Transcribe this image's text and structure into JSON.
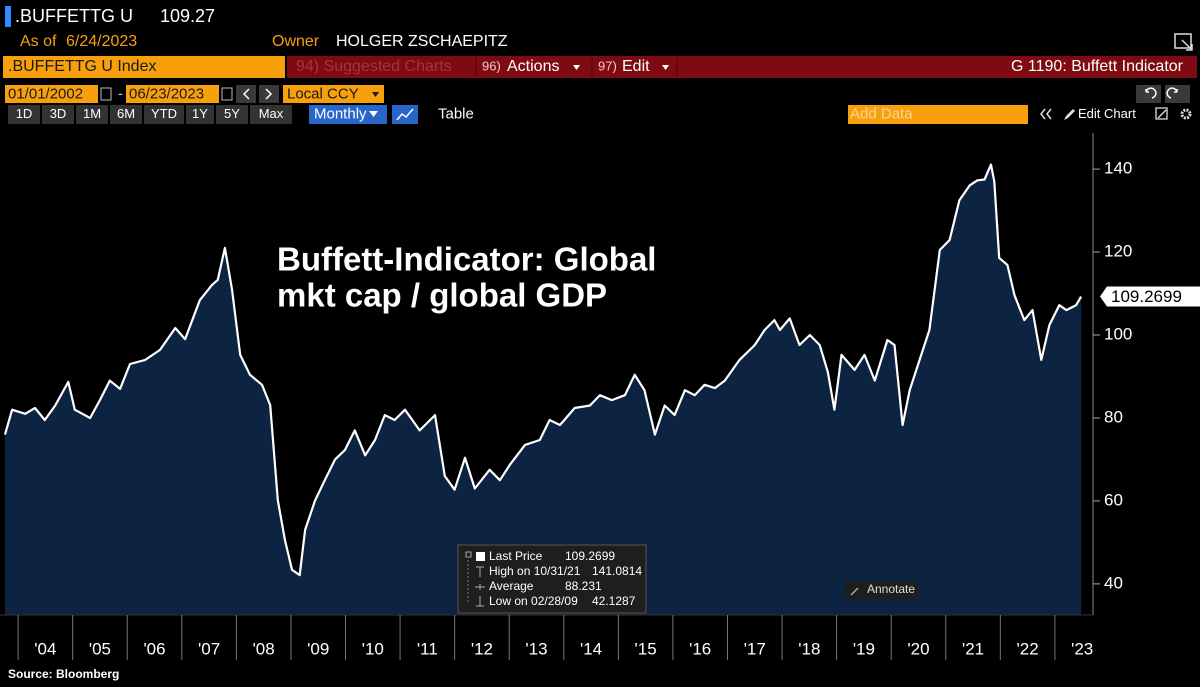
{
  "header": {
    "ticker": ".BUFFETTG U",
    "price": "109.27",
    "as_of_label": "As of",
    "as_of_date": "6/24/2023",
    "owner_label": "Owner",
    "owner": "HOLGER ZSCHAEPITZ"
  },
  "menu": {
    "security": ".BUFFETTG U Index",
    "suggested": "94) Suggested Charts",
    "actions_num": "96)",
    "actions": "Actions",
    "edit_num": "97)",
    "edit": "Edit",
    "chart_id": "G 1190: Buffett Indicator"
  },
  "dates": {
    "start": "01/01/2002",
    "separator": "-",
    "end": "06/23/2023",
    "currency": "Local CCY"
  },
  "toolbar": {
    "ranges": [
      "1D",
      "3D",
      "1M",
      "6M",
      "YTD",
      "1Y",
      "5Y",
      "Max"
    ],
    "frequency": "Monthly",
    "table": "Table",
    "add_data": "Add Data",
    "edit_chart": "Edit Chart",
    "annotate": "Annotate"
  },
  "chart_data": {
    "type": "area",
    "annotation": [
      "Buffett-Indicator: Global",
      "mkt cap / global GDP"
    ],
    "source": "Source: Bloomberg",
    "color": "#ffffff",
    "fill_color": "#0c2342",
    "x": [
      2003.76,
      2003.89,
      2004.13,
      2004.31,
      2004.49,
      2004.68,
      2004.92,
      2005.04,
      2005.32,
      2005.5,
      2005.68,
      2005.87,
      2006.05,
      2006.33,
      2006.6,
      2006.88,
      2007.06,
      2007.33,
      2007.55,
      2007.66,
      2007.79,
      2007.92,
      2008.07,
      2008.25,
      2008.47,
      2008.62,
      2008.76,
      2008.89,
      2009.02,
      2009.16,
      2009.26,
      2009.44,
      2009.62,
      2009.81,
      2009.99,
      2010.17,
      2010.36,
      2010.54,
      2010.72,
      2010.9,
      2011.09,
      2011.36,
      2011.64,
      2011.82,
      2012.0,
      2012.19,
      2012.37,
      2012.64,
      2012.83,
      2013.01,
      2013.29,
      2013.56,
      2013.74,
      2013.93,
      2014.2,
      2014.48,
      2014.66,
      2014.88,
      2015.12,
      2015.3,
      2015.48,
      2015.67,
      2015.85,
      2016.03,
      2016.22,
      2016.4,
      2016.58,
      2016.77,
      2016.95,
      2017.22,
      2017.5,
      2017.68,
      2017.86,
      2017.96,
      2018.14,
      2018.32,
      2018.51,
      2018.69,
      2018.84,
      2018.96,
      2019.09,
      2019.33,
      2019.51,
      2019.7,
      2019.93,
      2020.06,
      2020.21,
      2020.34,
      2020.52,
      2020.7,
      2020.89,
      2021.07,
      2021.25,
      2021.44,
      2021.58,
      2021.71,
      2021.83,
      2021.89,
      2021.98,
      2022.13,
      2022.26,
      2022.44,
      2022.59,
      2022.75,
      2022.9,
      2023.08,
      2023.21,
      2023.39,
      2023.48
    ],
    "values": [
      76,
      82,
      81,
      82.4,
      79.5,
      83,
      88.7,
      82,
      80,
      84.3,
      89,
      87,
      93,
      94,
      96.4,
      101.7,
      99,
      108.4,
      112,
      113.3,
      121,
      111,
      95.2,
      90.4,
      88,
      83.1,
      60.2,
      50.6,
      43.4,
      42.1287,
      53,
      60,
      65,
      70,
      72.3,
      77,
      71,
      74.7,
      80.7,
      79.5,
      82,
      77,
      80.7,
      66,
      62.7,
      70.4,
      63,
      67.5,
      65,
      68.7,
      73.5,
      74.7,
      79.5,
      78.3,
      82.4,
      83,
      85.5,
      84.3,
      85.5,
      90.4,
      86.7,
      76,
      83,
      80.7,
      86.7,
      85.5,
      88,
      87.2,
      89,
      94,
      97.6,
      101.2,
      103.6,
      101.2,
      104,
      97.6,
      100,
      97.6,
      91,
      82,
      95.2,
      91.6,
      95.2,
      89,
      98.8,
      97.6,
      78.3,
      86.7,
      94,
      101.2,
      120.5,
      122.9,
      132.5,
      136.1,
      137.3,
      137.5,
      141.0814,
      137,
      118.6,
      116.9,
      109.6,
      103.6,
      106,
      94,
      102.4,
      107.2,
      106,
      107.2,
      109.2699
    ],
    "xlim": [
      2003.76,
      2023.68
    ],
    "ylim": [
      32.5,
      148.7
    ],
    "yticks": [
      40,
      60,
      80,
      100,
      120,
      140
    ],
    "xticks": [
      {
        "value": 2004,
        "label": "'04"
      },
      {
        "value": 2005,
        "label": "'05"
      },
      {
        "value": 2006,
        "label": "'06"
      },
      {
        "value": 2007,
        "label": "'07"
      },
      {
        "value": 2008,
        "label": "'08"
      },
      {
        "value": 2009,
        "label": "'09"
      },
      {
        "value": 2010,
        "label": "'10"
      },
      {
        "value": 2011,
        "label": "'11"
      },
      {
        "value": 2012,
        "label": "'12"
      },
      {
        "value": 2013,
        "label": "'13"
      },
      {
        "value": 2014,
        "label": "'14"
      },
      {
        "value": 2015,
        "label": "'15"
      },
      {
        "value": 2016,
        "label": "'16"
      },
      {
        "value": 2017,
        "label": "'17"
      },
      {
        "value": 2018,
        "label": "'18"
      },
      {
        "value": 2019,
        "label": "'19"
      },
      {
        "value": 2020,
        "label": "'20"
      },
      {
        "value": 2021,
        "label": "'21"
      },
      {
        "value": 2022,
        "label": "'22"
      },
      {
        "value": 2023,
        "label": "'23"
      }
    ],
    "stats": [
      {
        "label": "Last Price",
        "value": 109.2699
      },
      {
        "label": "High on 10/31/21",
        "value": 141.0814
      },
      {
        "label": "Average",
        "value": 88.231
      },
      {
        "label": "Low on 02/28/09",
        "value": 42.1287
      }
    ]
  }
}
